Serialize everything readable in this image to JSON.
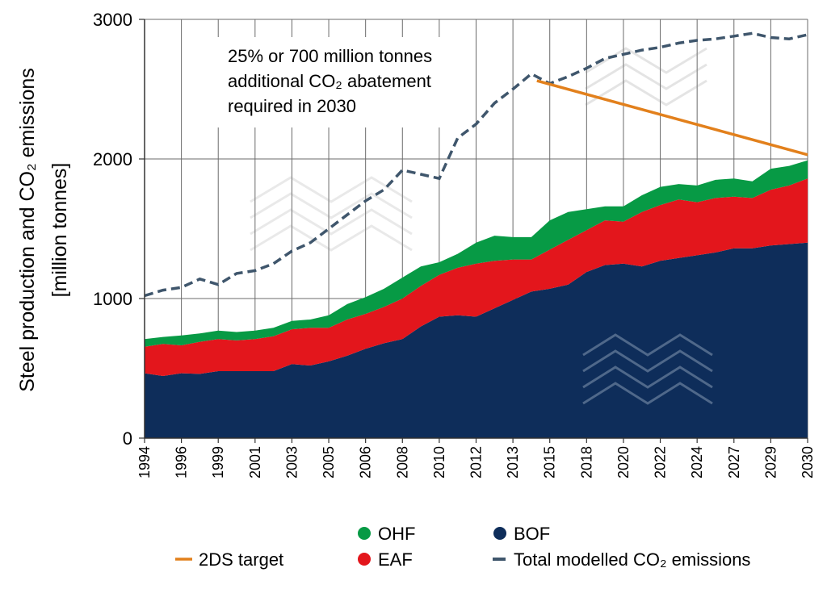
{
  "chart_data": {
    "type": "area",
    "ylabel_line1": "Steel production and CO₂ emissions",
    "ylabel_line2": "[million tonnes]",
    "ylim": [
      0,
      3000
    ],
    "yticks": [
      "0",
      "1000",
      "2000",
      "3000"
    ],
    "xlim": [
      0,
      36
    ],
    "xtick_labels": [
      "1994",
      "1996",
      "1999",
      "2001",
      "2003",
      "2005",
      "2006",
      "2008",
      "2010",
      "2012",
      "2013",
      "2015",
      "2018",
      "2020",
      "2022",
      "2024",
      "2027",
      "2029",
      "2030"
    ],
    "annotation": [
      "25% or 700 million tonnes",
      "additional CO₂ abatement",
      "required in 2030"
    ],
    "stacked_series": [
      {
        "name": "BOF",
        "color": "#0e2d5a",
        "values": [
          465,
          445,
          465,
          460,
          480,
          480,
          480,
          480,
          530,
          520,
          550,
          590,
          640,
          680,
          710,
          800,
          870,
          880,
          870,
          930,
          990,
          1050,
          1070,
          1100,
          1190,
          1240,
          1250,
          1230,
          1270,
          1290,
          1310,
          1330,
          1360,
          1360,
          1380,
          1390,
          1400
        ]
      },
      {
        "name": "EAF",
        "color": "#e3161c",
        "values": [
          190,
          230,
          200,
          230,
          230,
          220,
          230,
          250,
          250,
          270,
          240,
          260,
          250,
          260,
          290,
          290,
          300,
          340,
          380,
          340,
          290,
          230,
          280,
          320,
          300,
          320,
          300,
          390,
          400,
          420,
          380,
          390,
          370,
          360,
          400,
          420,
          460
        ]
      },
      {
        "name": "OHF",
        "color": "#079a45",
        "values": [
          55,
          50,
          70,
          60,
          60,
          60,
          60,
          60,
          60,
          60,
          90,
          110,
          120,
          130,
          150,
          140,
          90,
          100,
          150,
          180,
          160,
          160,
          210,
          200,
          150,
          100,
          110,
          120,
          130,
          110,
          120,
          130,
          130,
          120,
          150,
          140,
          130
        ]
      }
    ],
    "lines": [
      {
        "name": "Total modelled CO₂ emissions",
        "color": "#3f566c",
        "style": "dashed",
        "values": [
          1020,
          1060,
          1080,
          1140,
          1100,
          1180,
          1200,
          1250,
          1340,
          1400,
          1500,
          1600,
          1700,
          1780,
          1920,
          1890,
          1860,
          2150,
          2250,
          2400,
          2500,
          2610,
          2540,
          2590,
          2650,
          2720,
          2750,
          2780,
          2800,
          2830,
          2850,
          2860,
          2880,
          2900,
          2870,
          2860,
          2890
        ]
      },
      {
        "name": "2DS target",
        "color": "#e2801c",
        "style": "solid",
        "points": [
          {
            "x": 21.3,
            "y": 2560
          },
          {
            "x": 36,
            "y": 2030
          }
        ]
      }
    ],
    "legend": {
      "col1": [
        {
          "label": "OHF",
          "marker": "dot",
          "color": "#079a45"
        },
        {
          "label": "EAF",
          "marker": "dot",
          "color": "#e3161c"
        },
        {
          "label": "2DS target",
          "marker": "line",
          "color": "#e2801c"
        }
      ],
      "col2": [
        {
          "label": "BOF",
          "marker": "dot",
          "color": "#0e2d5a"
        },
        {
          "label": "Total modelled CO₂ emissions",
          "marker": "dash",
          "color": "#3f566c"
        }
      ]
    }
  }
}
